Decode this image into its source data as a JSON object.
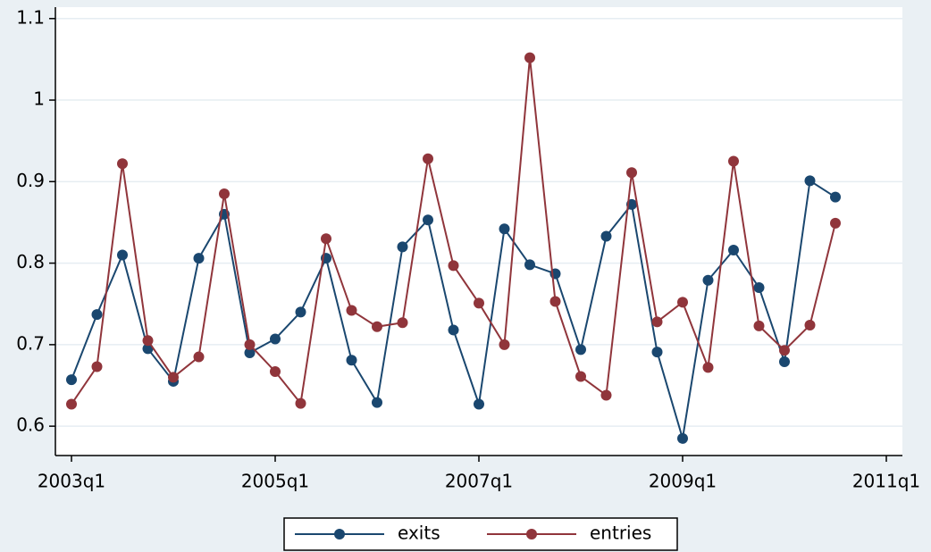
{
  "chart_data": {
    "type": "line",
    "x": [
      "2003q1",
      "2003q2",
      "2003q3",
      "2003q4",
      "2004q1",
      "2004q2",
      "2004q3",
      "2004q4",
      "2005q1",
      "2005q2",
      "2005q3",
      "2005q4",
      "2006q1",
      "2006q2",
      "2006q3",
      "2006q4",
      "2007q1",
      "2007q2",
      "2007q3",
      "2007q4",
      "2008q1",
      "2008q2",
      "2008q3",
      "2008q4",
      "2009q1",
      "2009q2",
      "2009q3",
      "2009q4",
      "2010q1",
      "2010q2",
      "2010q3"
    ],
    "series": [
      {
        "name": "exits",
        "color": "#1a476f",
        "values": [
          0.657,
          0.737,
          0.81,
          0.695,
          0.655,
          0.806,
          0.86,
          0.69,
          0.707,
          0.74,
          0.806,
          0.681,
          0.629,
          0.82,
          0.853,
          0.718,
          0.627,
          0.842,
          0.798,
          0.787,
          0.694,
          0.833,
          0.872,
          0.691,
          0.585,
          0.779,
          0.816,
          0.77,
          0.679,
          0.901,
          0.881
        ]
      },
      {
        "name": "entries",
        "color": "#90353b",
        "values": [
          0.627,
          0.673,
          0.922,
          0.705,
          0.66,
          0.685,
          0.885,
          0.7,
          0.667,
          0.628,
          0.83,
          0.742,
          0.722,
          0.727,
          0.928,
          0.797,
          0.751,
          0.7,
          1.052,
          0.753,
          0.661,
          0.638,
          0.911,
          0.728,
          0.752,
          0.672,
          0.925,
          0.723,
          0.693,
          0.724,
          0.849
        ]
      }
    ],
    "xlim": [
      "2003q1",
      "2011q1"
    ],
    "xticks": [
      "2003q1",
      "2005q1",
      "2007q1",
      "2009q1",
      "2011q1"
    ],
    "ylim": [
      0.564,
      1.114
    ],
    "yticks": [
      0.6,
      0.7,
      0.8,
      0.9,
      1,
      1.1
    ],
    "grid": true,
    "legend": "bottom"
  }
}
